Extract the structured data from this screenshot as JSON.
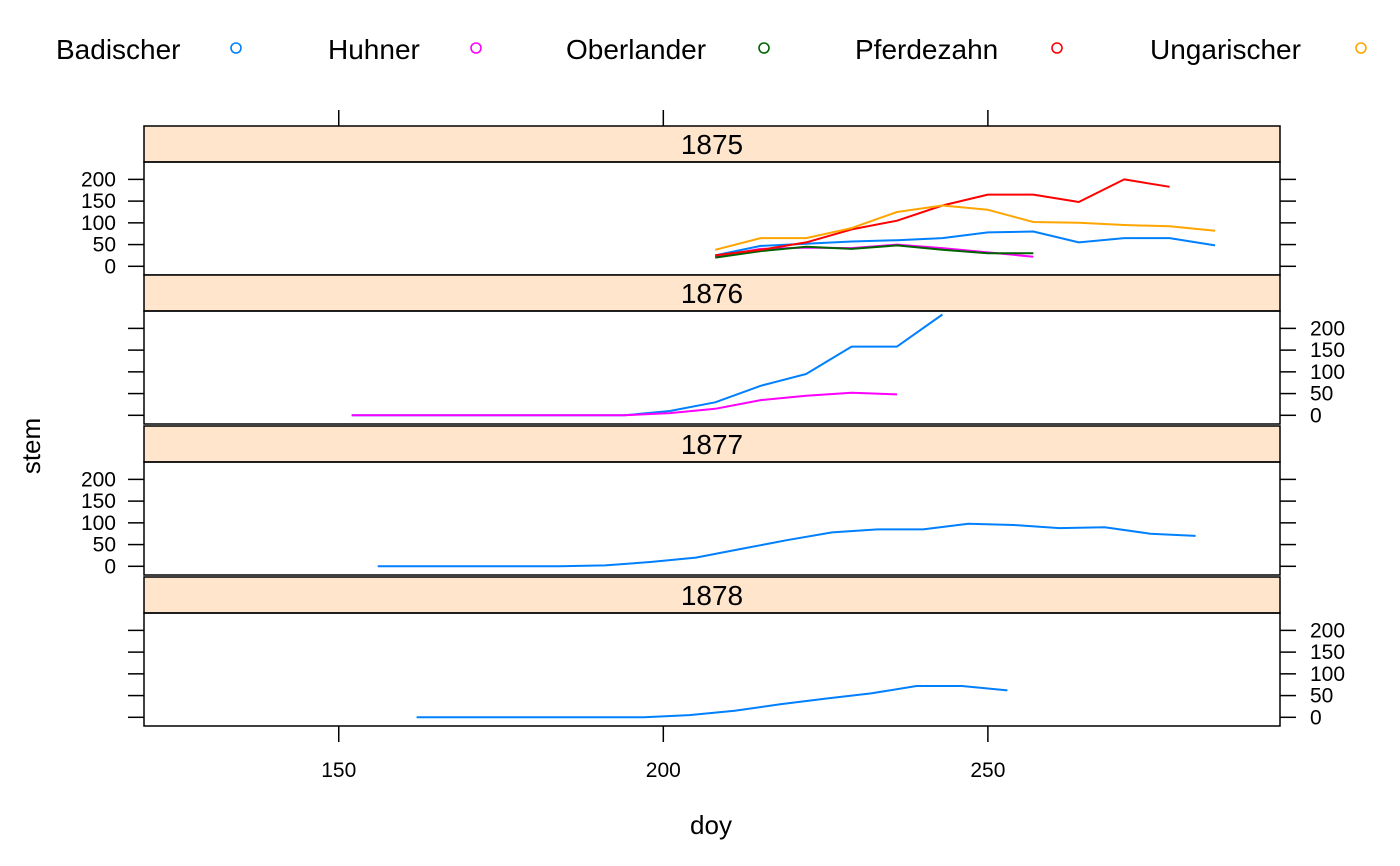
{
  "chart_data": {
    "type": "line",
    "title": "",
    "xlabel": "doy",
    "ylabel": "stem",
    "xlim": [
      120,
      295
    ],
    "ylim": [
      -20,
      240
    ],
    "x_ticks": [
      150,
      200,
      250
    ],
    "y_ticks": [
      0,
      50,
      100,
      150,
      200
    ],
    "legend": {
      "position": "top",
      "items": [
        {
          "name": "Badischer",
          "color": "#0080ff"
        },
        {
          "name": "Huhner",
          "color": "#ff00ff"
        },
        {
          "name": "Oberlander",
          "color": "#006400"
        },
        {
          "name": "Pferdezahn",
          "color": "#ff0000"
        },
        {
          "name": "Ungarischer",
          "color": "#ffa500"
        }
      ]
    },
    "panels": [
      {
        "label": "1875",
        "y_axis_side": "left",
        "series": [
          {
            "name": "Badischer",
            "x": [
              208,
              215,
              222,
              229,
              236,
              243,
              250,
              257,
              264,
              271,
              278,
              285
            ],
            "y": [
              25,
              47,
              52,
              57,
              60,
              65,
              78,
              80,
              55,
              65,
              65,
              48
            ]
          },
          {
            "name": "Huhner",
            "x": [
              208,
              215,
              222,
              229,
              236,
              243,
              250,
              257
            ],
            "y": [
              22,
              40,
              43,
              42,
              50,
              42,
              32,
              22
            ]
          },
          {
            "name": "Oberlander",
            "x": [
              208,
              215,
              222,
              229,
              236,
              243,
              250,
              257
            ],
            "y": [
              20,
              35,
              45,
              40,
              48,
              38,
              30,
              30
            ]
          },
          {
            "name": "Pferdezahn",
            "x": [
              208,
              215,
              222,
              229,
              236,
              243,
              250,
              257,
              264,
              271,
              278
            ],
            "y": [
              25,
              38,
              55,
              85,
              105,
              140,
              165,
              165,
              148,
              200,
              183
            ]
          },
          {
            "name": "Ungarischer",
            "x": [
              208,
              215,
              222,
              229,
              236,
              243,
              250,
              257,
              264,
              271,
              278,
              285
            ],
            "y": [
              38,
              65,
              65,
              88,
              125,
              140,
              130,
              102,
              100,
              95,
              92,
              82
            ]
          }
        ]
      },
      {
        "label": "1876",
        "y_axis_side": "right",
        "series": [
          {
            "name": "Badischer",
            "x": [
              152,
              159,
              166,
              173,
              180,
              187,
              194,
              201,
              208,
              215,
              222,
              229,
              236,
              243
            ],
            "y": [
              0,
              0,
              0,
              0,
              0,
              0,
              0,
              10,
              30,
              68,
              95,
              158,
              158,
              232
            ]
          },
          {
            "name": "Huhner",
            "x": [
              152,
              159,
              166,
              173,
              180,
              187,
              194,
              201,
              208,
              215,
              222,
              229,
              236
            ],
            "y": [
              0,
              0,
              0,
              0,
              0,
              0,
              0,
              5,
              15,
              35,
              45,
              52,
              48
            ]
          }
        ]
      },
      {
        "label": "1877",
        "y_axis_side": "left",
        "series": [
          {
            "name": "Badischer",
            "x": [
              156,
              163,
              170,
              177,
              184,
              191,
              198,
              205,
              212,
              219,
              226,
              233,
              240,
              247,
              254,
              261,
              268,
              275,
              282
            ],
            "y": [
              0,
              0,
              0,
              0,
              0,
              2,
              10,
              20,
              40,
              60,
              78,
              85,
              85,
              98,
              95,
              88,
              90,
              75,
              70
            ]
          }
        ]
      },
      {
        "label": "1878",
        "y_axis_side": "right",
        "series": [
          {
            "name": "Badischer",
            "x": [
              162,
              169,
              176,
              183,
              190,
              197,
              204,
              211,
              218,
              225,
              232,
              239,
              246,
              253
            ],
            "y": [
              0,
              0,
              0,
              0,
              0,
              0,
              5,
              15,
              30,
              43,
              55,
              72,
              72,
              62
            ]
          }
        ]
      }
    ]
  }
}
